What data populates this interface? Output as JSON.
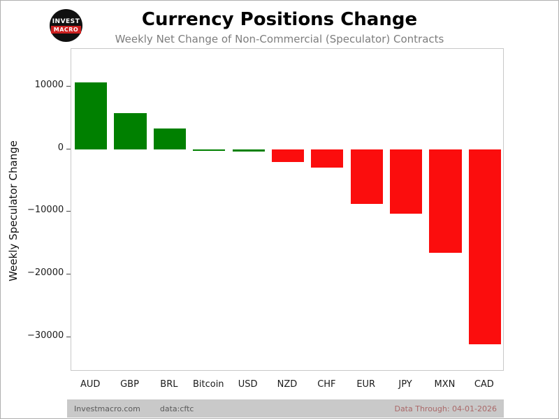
{
  "header": {
    "title": "Currency Positions Change",
    "subtitle": "Weekly Net Change of Non-Commercial (Speculator) Contracts",
    "logo": {
      "line1": "INVEST",
      "line2": "MACRO"
    }
  },
  "footer": {
    "site": "Investmacro.com",
    "source": "data:cftc",
    "data_through": "Data Through: 04-01-2026"
  },
  "chart_data": {
    "type": "bar",
    "title": "Currency Positions Change",
    "subtitle": "Weekly Net Change of Non-Commercial (Speculator) Contracts",
    "ylabel": "Weekly Speculator Change",
    "xlabel": "",
    "categories": [
      "AUD",
      "GBP",
      "BRL",
      "Bitcoin",
      "USD",
      "NZD",
      "CHF",
      "EUR",
      "JPY",
      "MXN",
      "CAD"
    ],
    "values": [
      10600,
      5700,
      3300,
      -300,
      -400,
      -2100,
      -2900,
      -8800,
      -10300,
      -16600,
      -31200
    ],
    "colors": [
      "#008000",
      "#008000",
      "#008000",
      "#008000",
      "#008000",
      "#fb0d0d",
      "#fb0d0d",
      "#fb0d0d",
      "#fb0d0d",
      "#fb0d0d",
      "#fb0d0d"
    ],
    "positive_color": "#008000",
    "negative_color": "#fb0d0d",
    "ylim": [
      -35500,
      16000
    ],
    "yticks": [
      {
        "value": 10000,
        "label": "10000"
      },
      {
        "value": 0,
        "label": "0"
      },
      {
        "value": -10000,
        "label": "−10000"
      },
      {
        "value": -20000,
        "label": "−20000"
      },
      {
        "value": -30000,
        "label": "−30000"
      }
    ],
    "grid": false,
    "legend": "none",
    "bar_width_fraction": 0.82
  }
}
